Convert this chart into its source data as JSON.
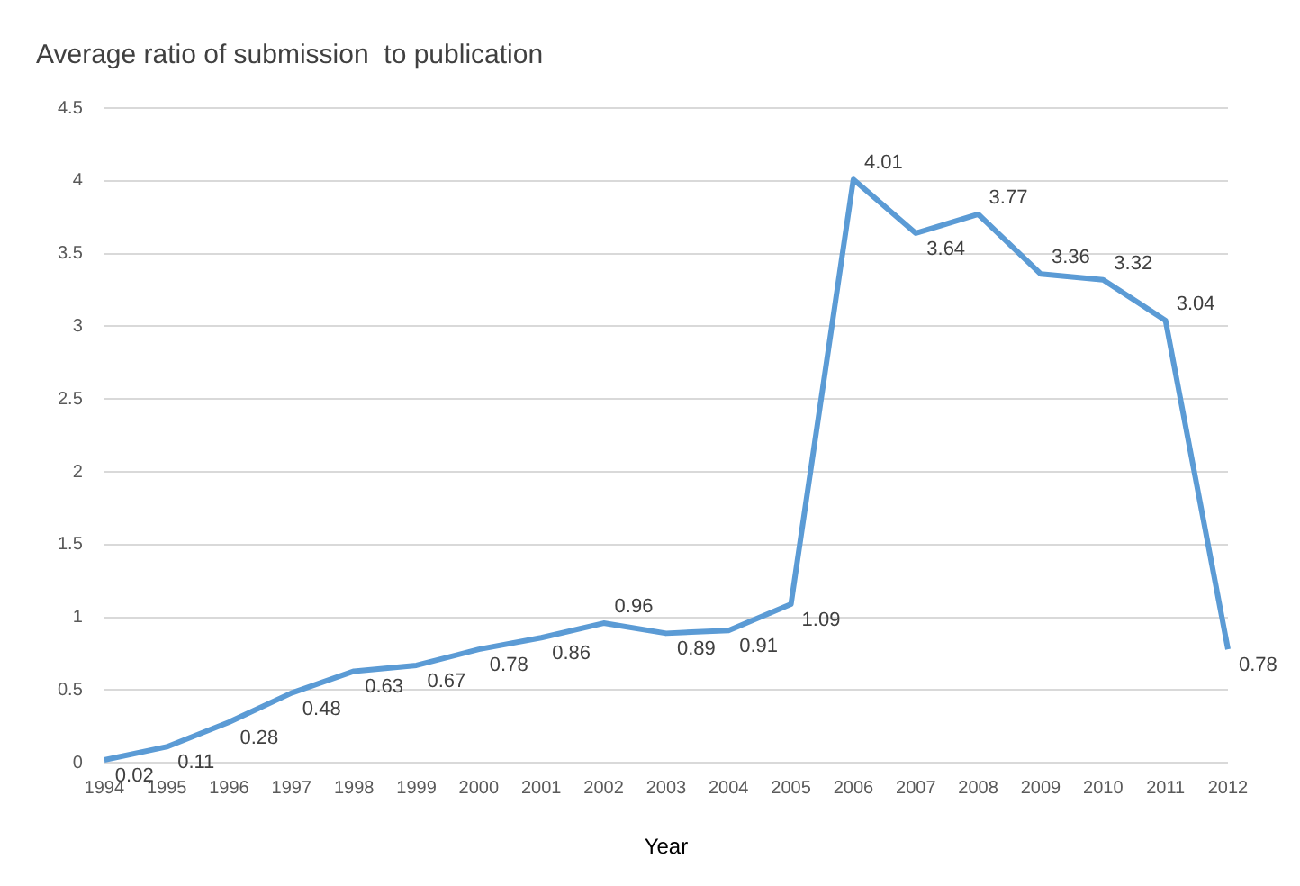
{
  "chart_data": {
    "type": "line",
    "title": "Average ratio of submission  to publication",
    "xlabel": "Year",
    "categories": [
      "1994",
      "1995",
      "1996",
      "1997",
      "1998",
      "1999",
      "2000",
      "2001",
      "2002",
      "2003",
      "2004",
      "2005",
      "2006",
      "2007",
      "2008",
      "2009",
      "2010",
      "2011",
      "2012"
    ],
    "series": [
      {
        "color": "#5b9bd5",
        "values": [
          0.02,
          0.11,
          0.28,
          0.48,
          0.63,
          0.67,
          0.78,
          0.86,
          0.96,
          0.89,
          0.91,
          1.09,
          4.01,
          3.64,
          3.77,
          3.36,
          3.32,
          3.04,
          0.78
        ]
      }
    ],
    "ylim": [
      0,
      4.5
    ],
    "yticks": [
      0,
      0.5,
      1,
      1.5,
      2,
      2.5,
      3,
      3.5,
      4,
      4.5
    ],
    "grid": "y",
    "legend": false,
    "marker": "none",
    "line_style": "solid",
    "data_labels": true
  }
}
